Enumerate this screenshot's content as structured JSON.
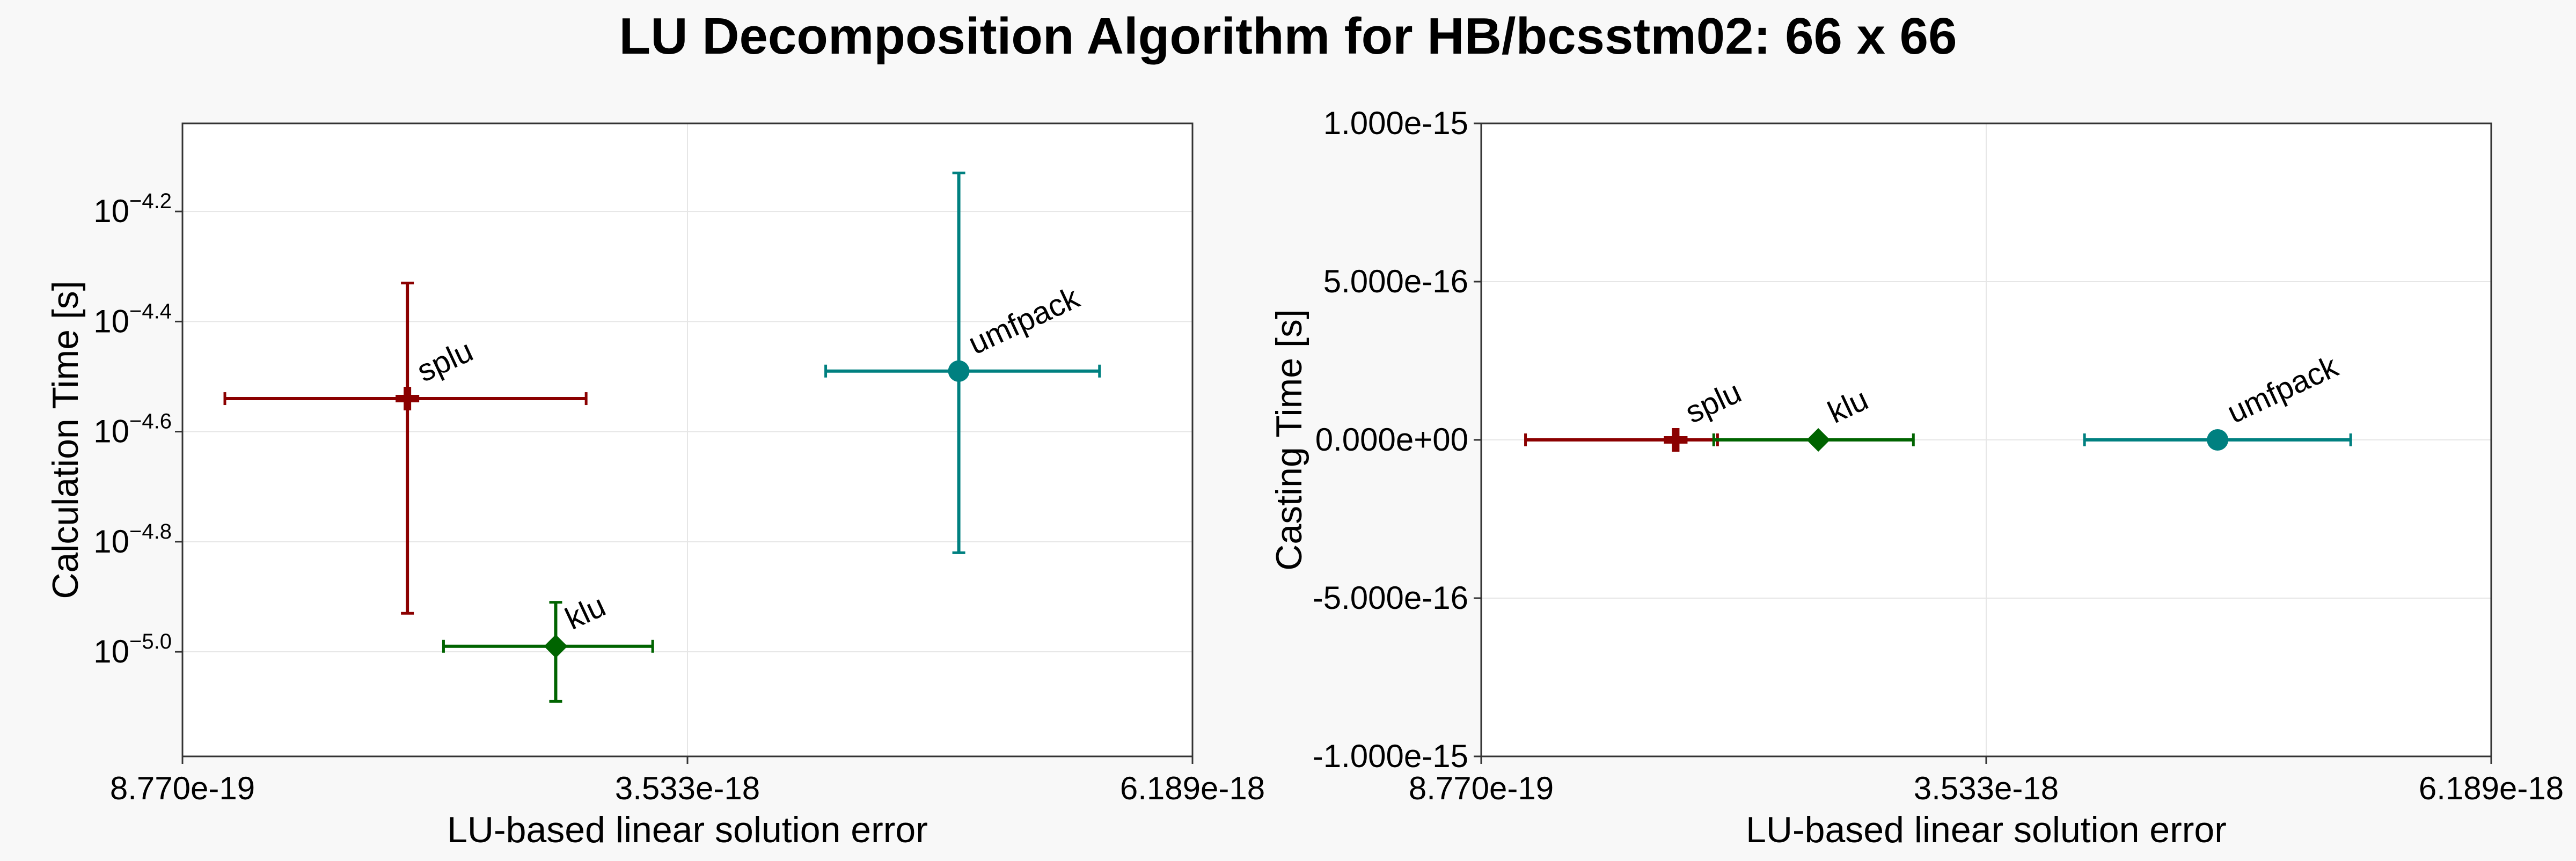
{
  "figure": {
    "title": "LU Decomposition Algorithm for HB/bcsstm02: 66 x 66"
  },
  "colors": {
    "splu": "#8b0000",
    "klu": "#006400",
    "umfpack": "#008080",
    "grid": "#e6e6e6",
    "axes": "#333333",
    "background": "#f8f8f8",
    "plot_background": "#ffffff"
  },
  "chart_data": [
    {
      "type": "scatter",
      "panel": "left",
      "xlabel": "LU-based linear solution error",
      "ylabel": "Calculation Time [s]",
      "xscale": "linear",
      "yscale": "log",
      "xlim": [
        8.77e-19,
        6.189e-18
      ],
      "ylim_log10": [
        -5.19,
        -4.04
      ],
      "grid": true,
      "xticks": [
        8.77e-19,
        3.533e-18,
        6.189e-18
      ],
      "xtick_labels": [
        "8.770e-19",
        "3.533e-18",
        "6.189e-18"
      ],
      "yticks": [
        {
          "base": "10",
          "exp": "−5.0",
          "log10": -5.0
        },
        {
          "base": "10",
          "exp": "−4.8",
          "log10": -4.8
        },
        {
          "base": "10",
          "exp": "−4.6",
          "log10": -4.6
        },
        {
          "base": "10",
          "exp": "−4.4",
          "log10": -4.4
        },
        {
          "base": "10",
          "exp": "−4.2",
          "log10": -4.2
        }
      ],
      "series": [
        {
          "name": "splu",
          "marker": "plus",
          "x": 2.06e-18,
          "x_err": [
            1.1e-18,
            3e-18
          ],
          "y_log10": -4.54,
          "y_err_log10": [
            -4.93,
            -4.33
          ]
        },
        {
          "name": "klu",
          "marker": "diamond",
          "x": 2.84e-18,
          "x_err": [
            2.25e-18,
            3.35e-18
          ],
          "y_log10": -4.99,
          "y_err_log10": [
            -5.09,
            -4.91
          ]
        },
        {
          "name": "umfpack",
          "marker": "circle",
          "x": 4.96e-18,
          "x_err": [
            4.26e-18,
            5.7e-18
          ],
          "y_log10": -4.49,
          "y_err_log10": [
            -4.82,
            -4.13
          ]
        }
      ]
    },
    {
      "type": "scatter",
      "panel": "right",
      "xlabel": "LU-based linear solution error",
      "ylabel": "Casting Time [s]",
      "xscale": "linear",
      "yscale": "linear",
      "xlim": [
        8.77e-19,
        6.189e-18
      ],
      "ylim": [
        -1e-15,
        1e-15
      ],
      "grid": true,
      "xticks": [
        8.77e-19,
        3.533e-18,
        6.189e-18
      ],
      "xtick_labels": [
        "8.770e-19",
        "3.533e-18",
        "6.189e-18"
      ],
      "yticks": [
        -1e-15,
        -5e-16,
        0,
        5e-16,
        1e-15
      ],
      "ytick_labels": [
        "-1.000e-15",
        "-5.000e-16",
        "0.000e+00",
        "5.000e-16",
        "1.000e-15"
      ],
      "series": [
        {
          "name": "splu",
          "marker": "plus",
          "x": 1.9e-18,
          "x_err": [
            1.11e-18,
            2.12e-18
          ],
          "y": 0,
          "y_err": [
            0,
            0
          ]
        },
        {
          "name": "klu",
          "marker": "diamond",
          "x": 2.65e-18,
          "x_err": [
            2.1e-18,
            3.15e-18
          ],
          "y": 0,
          "y_err": [
            0,
            0
          ]
        },
        {
          "name": "umfpack",
          "marker": "circle",
          "x": 4.75e-18,
          "x_err": [
            4.05e-18,
            5.45e-18
          ],
          "y": 0,
          "y_err": [
            0,
            0
          ]
        }
      ]
    }
  ]
}
